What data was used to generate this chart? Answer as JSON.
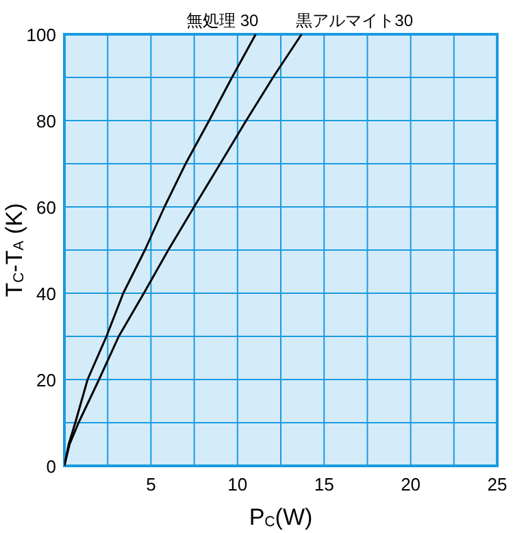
{
  "chart_data": {
    "type": "line",
    "xlabel": "P$_{C}$(W)",
    "ylabel": "T$_{C}$-T$_{A}$ (K)",
    "xlim": [
      0,
      25
    ],
    "ylim": [
      0,
      100
    ],
    "xticks": [
      {
        "value": 0,
        "label": null
      },
      {
        "value": 2.5,
        "label": null
      },
      5,
      {
        "value": 7.5,
        "label": null
      },
      10,
      {
        "value": 12.5,
        "label": null
      },
      15,
      {
        "value": 17.5,
        "label": null
      },
      20,
      {
        "value": 22.5,
        "label": null
      },
      25
    ],
    "yticks": [
      0,
      {
        "value": 10,
        "label": null
      },
      20,
      {
        "value": 30,
        "label": null
      },
      40,
      {
        "value": 50,
        "label": null
      },
      60,
      {
        "value": 70,
        "label": null
      },
      80,
      {
        "value": 90,
        "label": null
      },
      100
    ],
    "grid": true,
    "line_style": "solid",
    "marker": "none",
    "series": [
      {
        "name": "無処理 30",
        "color": "#000000",
        "x": [
          0,
          0.25,
          0.63,
          1.34,
          2.43,
          3.4,
          4.65,
          5.78,
          7.0,
          8.36,
          9.68,
          11.05
        ],
        "values": [
          0,
          5,
          10,
          20,
          30,
          40,
          50,
          60,
          70,
          80,
          90,
          100
        ]
      },
      {
        "name": "黒アルマイト30",
        "color": "#000000",
        "x": [
          0,
          0.3,
          0.82,
          2.0,
          3.14,
          4.59,
          6.0,
          7.49,
          9.0,
          10.5,
          12.05,
          13.7
        ],
        "values": [
          0,
          5,
          10,
          20,
          30,
          40,
          50,
          60,
          70,
          80,
          90,
          100
        ]
      }
    ]
  }
}
